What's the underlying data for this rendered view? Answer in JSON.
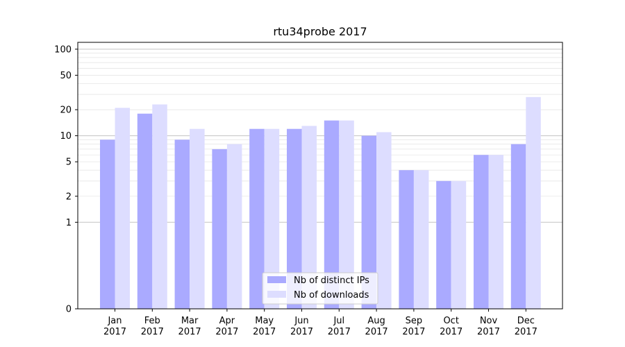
{
  "chart_data": {
    "type": "bar",
    "title": "rtu34probe 2017",
    "xlabel": "",
    "ylabel": "",
    "yscale": "symlog",
    "ylim": [
      0,
      120
    ],
    "yticks": [
      0,
      1,
      2,
      5,
      10,
      20,
      50,
      100
    ],
    "grid": true,
    "legend_position": "lower center",
    "categories": [
      "Jan\n2017",
      "Feb\n2017",
      "Mar\n2017",
      "Apr\n2017",
      "May\n2017",
      "Jun\n2017",
      "Jul\n2017",
      "Aug\n2017",
      "Sep\n2017",
      "Oct\n2017",
      "Nov\n2017",
      "Dec\n2017"
    ],
    "series": [
      {
        "name": "Nb of distinct IPs",
        "color": "#aaaaff",
        "values": [
          9,
          18,
          9,
          7,
          12,
          12,
          15,
          10,
          4,
          3,
          6,
          8
        ]
      },
      {
        "name": "Nb of downloads",
        "color": "#ddddff",
        "values": [
          21,
          23,
          12,
          8,
          12,
          13,
          15,
          11,
          4,
          3,
          6,
          28
        ]
      }
    ]
  }
}
